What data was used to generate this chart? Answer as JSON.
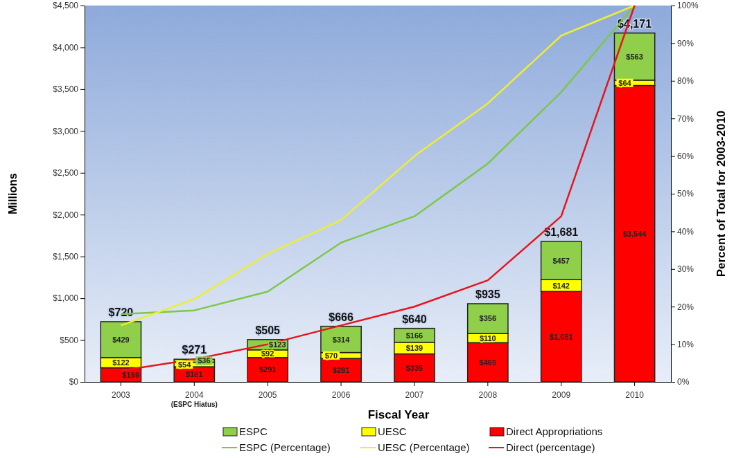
{
  "chart_data": {
    "type": "bar",
    "stacked": true,
    "xlabel": "Fiscal Year",
    "ylabel": "Millions",
    "y2label": "Percent of Total for 2003-2010",
    "categories": [
      "2003",
      "2004",
      "2005",
      "2006",
      "2007",
      "2008",
      "2009",
      "2010"
    ],
    "series": [
      {
        "name": "Direct Appropriations",
        "color": "#ff0000",
        "values": [
          169,
          181,
          291,
          281,
          335,
          469,
          1081,
          3544
        ],
        "value_labels": [
          "$169",
          "$181",
          "$291",
          "$281",
          "$335",
          "$469",
          "$1,081",
          "$3,544"
        ]
      },
      {
        "name": "UESC",
        "color": "#ffff00",
        "values": [
          122,
          54,
          92,
          70,
          139,
          110,
          142,
          64
        ],
        "value_labels": [
          "$122",
          "$54",
          "$92",
          "$70",
          "$139",
          "$110",
          "$142",
          "$64"
        ]
      },
      {
        "name": "ESPC",
        "color": "#8fcf4a",
        "values": [
          429,
          36,
          123,
          314,
          166,
          356,
          457,
          563
        ],
        "value_labels": [
          "$429",
          "$36",
          "$123",
          "$314",
          "$166",
          "$356",
          "$457",
          "$563"
        ]
      },
      {
        "name": "ESPC (Percentage)",
        "type": "line",
        "axis": "y2",
        "color": "#7cc845",
        "values": [
          18,
          19,
          24,
          37,
          44,
          58,
          77,
          100
        ]
      },
      {
        "name": "UESC (Percentage)",
        "type": "line",
        "axis": "y2",
        "color": "#eeee30",
        "values": [
          15,
          22,
          34,
          43,
          60,
          74,
          92,
          100
        ]
      },
      {
        "name": "Direct (percentage)",
        "type": "line",
        "axis": "y2",
        "color": "#e8141c",
        "values": [
          3,
          6,
          10,
          15,
          20,
          27,
          44,
          100
        ]
      }
    ],
    "totals": [
      "$720",
      "$271",
      "$505",
      "$666",
      "$640",
      "$935",
      "$1,681",
      "$4,171"
    ],
    "annotations": [
      "(ESPC Hiatus)"
    ],
    "ylim": [
      0,
      4500
    ],
    "yticks": [
      {
        "value": 0,
        "label": "$0"
      },
      {
        "value": 500,
        "label": "$500"
      },
      {
        "value": 1000,
        "label": "$1,000"
      },
      {
        "value": 1500,
        "label": "$1,500"
      },
      {
        "value": 2000,
        "label": "$2,000"
      },
      {
        "value": 2500,
        "label": "$2,500"
      },
      {
        "value": 3000,
        "label": "$3,000"
      },
      {
        "value": 3500,
        "label": "$3,500"
      },
      {
        "value": 4000,
        "label": "$4,000"
      },
      {
        "value": 4500,
        "label": "$4,500"
      }
    ],
    "y2lim": [
      0,
      100
    ],
    "y2ticks": [
      {
        "value": 0,
        "label": "0%"
      },
      {
        "value": 10,
        "label": "10%"
      },
      {
        "value": 20,
        "label": "20%"
      },
      {
        "value": 30,
        "label": "30%"
      },
      {
        "value": 40,
        "label": "40%"
      },
      {
        "value": 50,
        "label": "50%"
      },
      {
        "value": 60,
        "label": "60%"
      },
      {
        "value": 70,
        "label": "70%"
      },
      {
        "value": 80,
        "label": "80%"
      },
      {
        "value": 90,
        "label": "90%"
      },
      {
        "value": 100,
        "label": "100%"
      }
    ],
    "legend": "bottom",
    "marker": "none",
    "line_style": "solid"
  }
}
